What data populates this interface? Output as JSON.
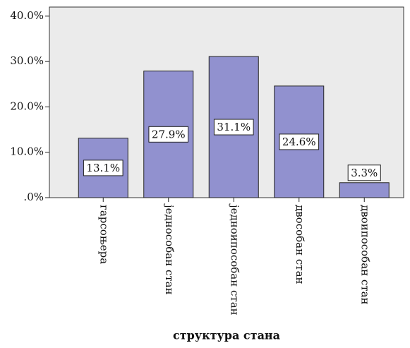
{
  "chart_data": {
    "type": "bar",
    "x_label": "структура стана",
    "categories": [
      "гарсоњера",
      "једнособан стан",
      "једноипособан стан",
      "двособан стан",
      "двоипособан стан"
    ],
    "values": [
      13.1,
      27.9,
      31.1,
      24.6,
      3.3
    ],
    "value_labels": [
      "13.1%",
      "27.9%",
      "31.1%",
      "24.6%",
      "3.3%"
    ],
    "color": "#9191cf",
    "ylim": [
      0,
      42
    ],
    "yticks": [
      {
        "value": 0,
        "label": ".0%"
      },
      {
        "value": 10,
        "label": "10.0%"
      },
      {
        "value": 20,
        "label": "20.0%"
      },
      {
        "value": 30,
        "label": "30.0%"
      },
      {
        "value": 40,
        "label": "40.0%"
      }
    ],
    "grid": false
  }
}
